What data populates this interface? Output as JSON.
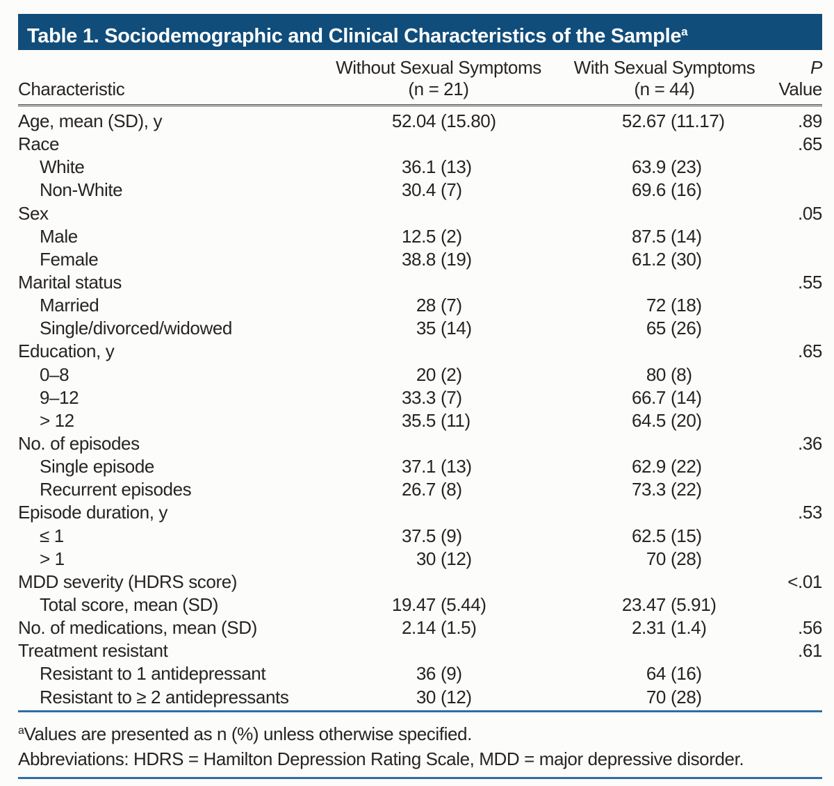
{
  "title": {
    "text": "Table 1. Sociodemographic and Clinical Characteristics of the Sample",
    "superscript": "a"
  },
  "colors": {
    "title_bar_blue": "#114d7a",
    "rule_blue": "#2f6da8",
    "header_rule_dark": "#3f3f3f",
    "text": "#272324",
    "background": "#fcfcfa"
  },
  "header": {
    "characteristic": "Characteristic",
    "group1": {
      "line1": "Without Sexual Symptoms",
      "line2": "(n = 21)"
    },
    "group2": {
      "line1": "With Sexual Symptoms",
      "line2": "(n = 44)"
    },
    "p": {
      "line1": "P",
      "line2": "Value"
    }
  },
  "table": {
    "rows": [
      {
        "label": "Age, mean (SD), y",
        "indent": 0,
        "c1": "52.04",
        "c1p": "(15.80)",
        "c2": "52.67",
        "c2p": "(11.17)",
        "p": ".89"
      },
      {
        "label": "Race",
        "indent": 0,
        "c1": "",
        "c1p": "",
        "c2": "",
        "c2p": "",
        "p": ".65"
      },
      {
        "label": "White",
        "indent": 1,
        "c1": "36.1",
        "c1p": "(13)",
        "c2": "63.9",
        "c2p": "(23)",
        "p": ""
      },
      {
        "label": "Non-White",
        "indent": 1,
        "c1": "30.4",
        "c1p": "(7)",
        "c2": "69.6",
        "c2p": "(16)",
        "p": ""
      },
      {
        "label": "Sex",
        "indent": 0,
        "c1": "",
        "c1p": "",
        "c2": "",
        "c2p": "",
        "p": ".05"
      },
      {
        "label": "Male",
        "indent": 1,
        "c1": "12.5",
        "c1p": "(2)",
        "c2": "87.5",
        "c2p": "(14)",
        "p": ""
      },
      {
        "label": "Female",
        "indent": 1,
        "c1": "38.8",
        "c1p": "(19)",
        "c2": "61.2",
        "c2p": "(30)",
        "p": ""
      },
      {
        "label": "Marital status",
        "indent": 0,
        "c1": "",
        "c1p": "",
        "c2": "",
        "c2p": "",
        "p": ".55"
      },
      {
        "label": "Married",
        "indent": 1,
        "c1": "28",
        "c1p": "(7)",
        "c2": "72",
        "c2p": "(18)",
        "p": ""
      },
      {
        "label": "Single/divorced/widowed",
        "indent": 1,
        "c1": "35",
        "c1p": "(14)",
        "c2": "65",
        "c2p": "(26)",
        "p": ""
      },
      {
        "label": "Education, y",
        "indent": 0,
        "c1": "",
        "c1p": "",
        "c2": "",
        "c2p": "",
        "p": ".65"
      },
      {
        "label": "0–8",
        "indent": 1,
        "c1": "20",
        "c1p": "(2)",
        "c2": "80",
        "c2p": "(8)",
        "p": ""
      },
      {
        "label": "9–12",
        "indent": 1,
        "c1": "33.3",
        "c1p": "(7)",
        "c2": "66.7",
        "c2p": "(14)",
        "p": ""
      },
      {
        "label": "> 12",
        "indent": 1,
        "c1": "35.5",
        "c1p": "(11)",
        "c2": "64.5",
        "c2p": "(20)",
        "p": ""
      },
      {
        "label": "No. of episodes",
        "indent": 0,
        "c1": "",
        "c1p": "",
        "c2": "",
        "c2p": "",
        "p": ".36"
      },
      {
        "label": "Single episode",
        "indent": 1,
        "c1": "37.1",
        "c1p": "(13)",
        "c2": "62.9",
        "c2p": "(22)",
        "p": ""
      },
      {
        "label": "Recurrent episodes",
        "indent": 1,
        "c1": "26.7",
        "c1p": "(8)",
        "c2": "73.3",
        "c2p": "(22)",
        "p": ""
      },
      {
        "label": "Episode duration, y",
        "indent": 0,
        "c1": "",
        "c1p": "",
        "c2": "",
        "c2p": "",
        "p": ".53"
      },
      {
        "label": "≤ 1",
        "indent": 1,
        "c1": "37.5",
        "c1p": "(9)",
        "c2": "62.5",
        "c2p": "(15)",
        "p": ""
      },
      {
        "label": "> 1",
        "indent": 1,
        "c1": "30",
        "c1p": "(12)",
        "c2": "70",
        "c2p": "(28)",
        "p": ""
      },
      {
        "label": "MDD severity (HDRS score)",
        "indent": 0,
        "c1": "",
        "c1p": "",
        "c2": "",
        "c2p": "",
        "p": "<.01"
      },
      {
        "label": "Total score, mean (SD)",
        "indent": 1,
        "c1": "19.47",
        "c1p": "(5.44)",
        "c2": "23.47",
        "c2p": "(5.91)",
        "p": ""
      },
      {
        "label": "No. of medications, mean (SD)",
        "indent": 0,
        "c1": "2.14",
        "c1p": "(1.5)",
        "c2": "2.31",
        "c2p": "(1.4)",
        "p": ".56"
      },
      {
        "label": "Treatment resistant",
        "indent": 0,
        "c1": "",
        "c1p": "",
        "c2": "",
        "c2p": "",
        "p": ".61"
      },
      {
        "label": "Resistant to 1 antidepressant",
        "indent": 1,
        "c1": "36",
        "c1p": "(9)",
        "c2": "64",
        "c2p": "(16)",
        "p": ""
      },
      {
        "label": "Resistant to ≥ 2 antidepressants",
        "indent": 1,
        "c1": "30",
        "c1p": "(12)",
        "c2": "70",
        "c2p": "(28)",
        "p": ""
      }
    ]
  },
  "footnotes": [
    {
      "sup": "a",
      "text": "Values are presented as n (%) unless otherwise specified."
    },
    {
      "sup": "",
      "text": "Abbreviations: HDRS = Hamilton Depression Rating Scale, MDD = major depressive disorder."
    }
  ]
}
